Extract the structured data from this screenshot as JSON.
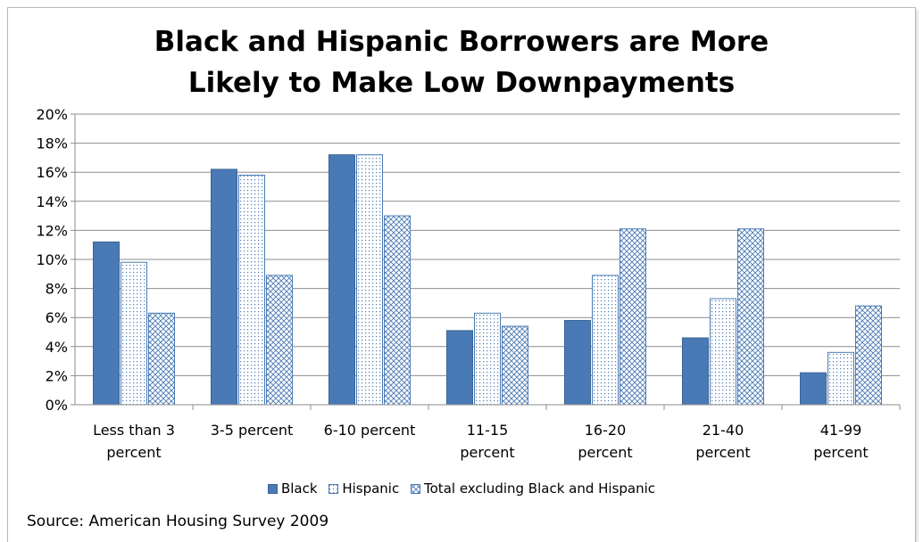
{
  "chart_data": {
    "type": "bar",
    "title": "Black and Hispanic Borrowers are More\nLikely to Make Low Downpayments",
    "categories": [
      [
        "Less than 3",
        "percent"
      ],
      [
        "3-5 percent"
      ],
      [
        "6-10 percent"
      ],
      [
        "11-15",
        "percent"
      ],
      [
        "16-20",
        "percent"
      ],
      [
        "21-40",
        "percent"
      ],
      [
        "41-99",
        "percent"
      ]
    ],
    "series": [
      {
        "name": "Black",
        "values": [
          11.2,
          16.2,
          17.2,
          5.1,
          5.8,
          4.6,
          2.2
        ]
      },
      {
        "name": "Hispanic",
        "values": [
          9.8,
          15.8,
          17.2,
          6.3,
          8.9,
          7.3,
          3.6
        ]
      },
      {
        "name": "Total excluding Black and Hispanic",
        "values": [
          6.3,
          8.9,
          13.0,
          5.4,
          12.1,
          12.1,
          6.8
        ]
      }
    ],
    "ylim": [
      0,
      20
    ],
    "yticks": [
      0,
      2,
      4,
      6,
      8,
      10,
      12,
      14,
      16,
      18,
      20
    ],
    "ytick_format": "percent",
    "grid": true,
    "legend": "bottom",
    "colors": {
      "black": "#4a7ab5",
      "hispanic": "#4a7ab5",
      "total": "#4a7ab5"
    }
  },
  "source": "Source: American Housing Survey 2009"
}
